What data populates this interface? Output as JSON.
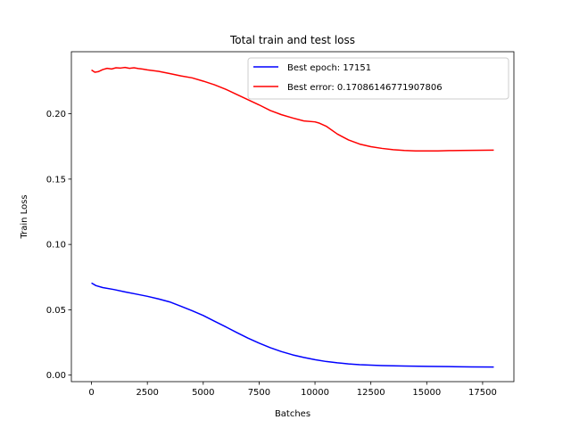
{
  "chart_data": {
    "type": "line",
    "title": "Total train and test loss",
    "xlabel": "Batches",
    "ylabel": "Train Loss",
    "xlim": [
      -900,
      18900
    ],
    "ylim": [
      -0.005,
      0.2475
    ],
    "xticks": [
      0,
      2500,
      5000,
      7500,
      10000,
      12500,
      15000,
      17500
    ],
    "xtick_labels": [
      "0",
      "2500",
      "5000",
      "7500",
      "10000",
      "12500",
      "15000",
      "17500"
    ],
    "yticks": [
      0.0,
      0.05,
      0.1,
      0.15,
      0.2
    ],
    "ytick_labels": [
      "0.00",
      "0.05",
      "0.10",
      "0.15",
      "0.20"
    ],
    "grid": false,
    "legend_position": "top-right",
    "series": [
      {
        "name": "Best epoch: 17151",
        "color": "#0000ff",
        "x": [
          0,
          200,
          500,
          1000,
          1500,
          2000,
          2500,
          3000,
          3500,
          4000,
          4500,
          5000,
          5500,
          6000,
          6500,
          7000,
          7500,
          8000,
          8500,
          9000,
          9500,
          10000,
          10500,
          11000,
          11500,
          12000,
          12500,
          13000,
          13500,
          14000,
          15000,
          16000,
          17000,
          18000
        ],
        "y": [
          0.0705,
          0.0685,
          0.067,
          0.0655,
          0.0637,
          0.062,
          0.0603,
          0.0583,
          0.056,
          0.0527,
          0.0493,
          0.0456,
          0.0413,
          0.037,
          0.0326,
          0.0283,
          0.0245,
          0.021,
          0.018,
          0.0155,
          0.0135,
          0.0118,
          0.0104,
          0.0094,
          0.0086,
          0.008,
          0.0076,
          0.0073,
          0.0071,
          0.0069,
          0.0067,
          0.0065,
          0.0063,
          0.0062
        ]
      },
      {
        "name": "Best error: 0.17086146771907806",
        "color": "#ff0000",
        "x": [
          0,
          150,
          300,
          500,
          700,
          900,
          1100,
          1300,
          1500,
          1700,
          1900,
          2100,
          2300,
          2500,
          3000,
          3500,
          4000,
          4500,
          5000,
          5500,
          6000,
          6500,
          7000,
          7500,
          8000,
          8500,
          9000,
          9500,
          10000,
          10200,
          10500,
          11000,
          11500,
          12000,
          12500,
          13000,
          13500,
          14000,
          14500,
          15000,
          15500,
          16000,
          16500,
          17000,
          17500,
          18000
        ],
        "y": [
          0.2335,
          0.2318,
          0.2322,
          0.2338,
          0.2348,
          0.2343,
          0.2352,
          0.235,
          0.2355,
          0.2348,
          0.2352,
          0.2346,
          0.2342,
          0.2336,
          0.2325,
          0.2308,
          0.229,
          0.2275,
          0.225,
          0.2222,
          0.2188,
          0.2148,
          0.2108,
          0.2068,
          0.2025,
          0.1993,
          0.1968,
          0.1945,
          0.1938,
          0.1928,
          0.1905,
          0.1845,
          0.18,
          0.1768,
          0.1748,
          0.1735,
          0.1725,
          0.1719,
          0.1716,
          0.1716,
          0.1716,
          0.1718,
          0.1719,
          0.172,
          0.1721,
          0.1722
        ]
      }
    ]
  }
}
